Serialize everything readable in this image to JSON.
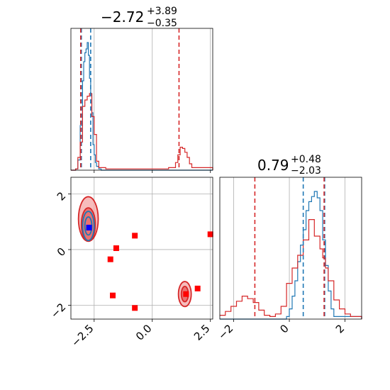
{
  "colors": {
    "blue": "#1f77b4",
    "red": "#d62728",
    "red_fill": "#f4a6a6",
    "marker_red": "#ff0000",
    "marker_blue": "#0000ff",
    "grid": "#b0b0b0"
  },
  "titles": {
    "param1": {
      "main": "−2.72",
      "sup": "+3.89",
      "sub": "−0.35"
    },
    "param2": {
      "main": "0.79",
      "sup": "+0.48",
      "sub": "−2.03"
    }
  },
  "chart_data": [
    {
      "type": "line",
      "panel": "param1-marginal",
      "xlim": [
        -3.5,
        2.6
      ],
      "grid": true,
      "series": [
        {
          "color": "#1f77b4",
          "x": [
            -3.5,
            -3.3,
            -3.2,
            -3.1,
            -3.0,
            -2.95,
            -2.9,
            -2.85,
            -2.8,
            -2.75,
            -2.7,
            -2.65,
            -2.6,
            -2.55,
            -2.5,
            -2.45,
            -2.4,
            -2.3,
            -2.2,
            2.6
          ],
          "y": [
            0,
            0.01,
            0.08,
            0.35,
            0.7,
            0.85,
            0.92,
            0.95,
            1.0,
            0.9,
            0.72,
            0.6,
            0.45,
            0.2,
            0.12,
            0.06,
            0.03,
            0.01,
            0,
            0
          ]
        },
        {
          "color": "#d62728",
          "x": [
            -3.5,
            -3.3,
            -3.2,
            -3.1,
            -3.0,
            -2.9,
            -2.8,
            -2.7,
            -2.6,
            -2.5,
            -2.4,
            -2.3,
            -2.0,
            0.7,
            1.0,
            1.1,
            1.2,
            1.3,
            1.4,
            1.5,
            1.6,
            1.7,
            2.6
          ],
          "y": [
            0,
            0.01,
            0.1,
            0.22,
            0.5,
            0.55,
            0.58,
            0.6,
            0.42,
            0.28,
            0.07,
            0.02,
            0.01,
            0.02,
            0.06,
            0.12,
            0.18,
            0.17,
            0.14,
            0.1,
            0.05,
            0.02,
            0
          ]
        }
      ],
      "vlines_blue": [
        -3.05,
        -2.65
      ],
      "vlines_red": [
        -3.08,
        1.15
      ]
    },
    {
      "type": "scatter",
      "panel": "param1-vs-param2",
      "xlim": [
        -3.5,
        2.6
      ],
      "ylim": [
        -2.5,
        2.6
      ],
      "xticks": [
        -2.5,
        0.0,
        2.5
      ],
      "xtick_labels": [
        "−2.5",
        "0.0",
        "2.5"
      ],
      "yticks": [
        -2,
        0,
        2
      ],
      "ytick_labels": [
        "−2",
        "0",
        "2"
      ],
      "grid": true,
      "red_contours": [
        {
          "cx": -2.75,
          "cy": 1.1,
          "rx": 0.85,
          "ry": 1.6
        },
        {
          "cx": -2.75,
          "cy": 0.9,
          "rx": 0.6,
          "ry": 1.2
        },
        {
          "cx": 1.4,
          "cy": -1.6,
          "rx": 0.55,
          "ry": 0.9
        },
        {
          "cx": 1.4,
          "cy": -1.6,
          "rx": 0.3,
          "ry": 0.55
        }
      ],
      "blue_contours": [
        {
          "cx": -2.75,
          "cy": 0.85,
          "rx": 0.5,
          "ry": 1.05
        },
        {
          "cx": -2.75,
          "cy": 0.85,
          "rx": 0.3,
          "ry": 0.65
        }
      ],
      "red_points": [
        [
          -0.75,
          0.5
        ],
        [
          -1.55,
          0.05
        ],
        [
          -1.8,
          -0.35
        ],
        [
          -1.7,
          -1.65
        ],
        [
          -0.75,
          -2.1
        ],
        [
          1.45,
          -1.6
        ],
        [
          1.95,
          -1.4
        ],
        [
          2.5,
          0.55
        ],
        [
          -2.72,
          0.79
        ]
      ],
      "blue_point": [
        -2.72,
        0.79
      ]
    },
    {
      "type": "line",
      "panel": "param2-marginal",
      "xlim": [
        -2.5,
        2.6
      ],
      "xticks": [
        -2,
        0,
        2
      ],
      "xtick_labels": [
        "−2",
        "0",
        "2"
      ],
      "grid": true,
      "series": [
        {
          "color": "#1f77b4",
          "x": [
            -2.5,
            -0.3,
            -0.1,
            0.0,
            0.1,
            0.2,
            0.3,
            0.4,
            0.5,
            0.6,
            0.7,
            0.8,
            0.9,
            1.0,
            1.1,
            1.2,
            1.3,
            1.4,
            1.5,
            1.6,
            2.6
          ],
          "y": [
            0,
            0,
            0.02,
            0.08,
            0.18,
            0.3,
            0.45,
            0.58,
            0.7,
            0.85,
            0.92,
            0.96,
            1.0,
            0.95,
            0.85,
            0.62,
            0.42,
            0.22,
            0.08,
            0.02,
            0
          ]
        },
        {
          "color": "#d62728",
          "x": [
            -2.5,
            -2.3,
            -2.1,
            -1.9,
            -1.7,
            -1.5,
            -1.3,
            -1.1,
            -0.9,
            -0.7,
            -0.5,
            -0.3,
            -0.1,
            0.1,
            0.3,
            0.5,
            0.7,
            0.9,
            1.1,
            1.2,
            1.3,
            1.4,
            1.6,
            1.8,
            2.0,
            2.2,
            2.6
          ],
          "y": [
            0.03,
            0.06,
            0.1,
            0.14,
            0.18,
            0.16,
            0.13,
            0.07,
            0.03,
            0.02,
            0.04,
            0.1,
            0.28,
            0.4,
            0.5,
            0.62,
            0.78,
            0.65,
            0.55,
            0.48,
            0.4,
            0.3,
            0.15,
            0.08,
            0.04,
            0.02,
            0
          ]
        }
      ],
      "vlines_blue": [
        0.5,
        1.27
      ],
      "vlines_red": [
        -1.24,
        1.25
      ]
    }
  ]
}
